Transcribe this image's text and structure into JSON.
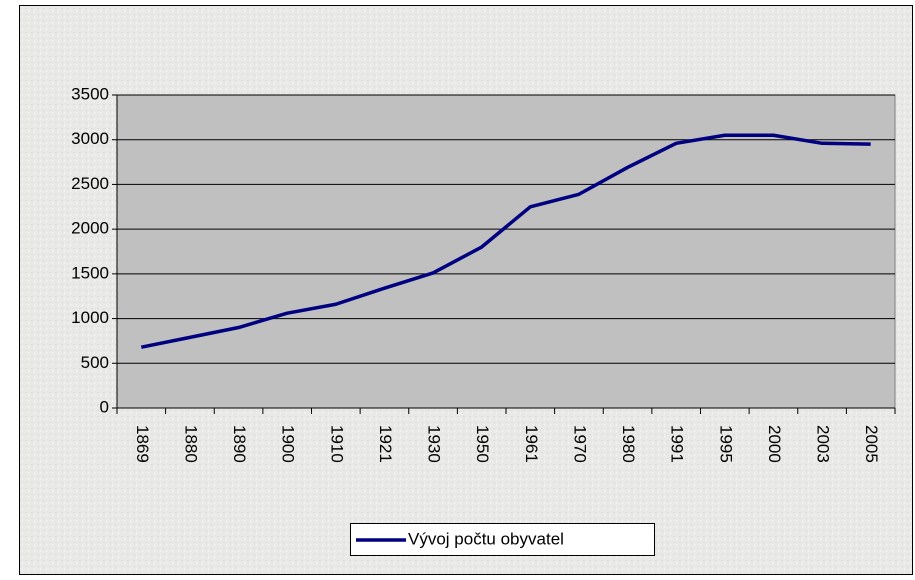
{
  "chart_data": {
    "type": "line",
    "categories": [
      "1869",
      "1880",
      "1890",
      "1900",
      "1910",
      "1921",
      "1930",
      "1950",
      "1961",
      "1970",
      "1980",
      "1991",
      "1995",
      "2000",
      "2003",
      "2005"
    ],
    "series": [
      {
        "name": "Vývoj počtu obyvatel",
        "color": "#000080",
        "values": [
          680,
          790,
          900,
          1060,
          1160,
          1340,
          1510,
          1800,
          2250,
          2390,
          2690,
          2960,
          3050,
          3050,
          2960,
          2950
        ]
      }
    ],
    "ylim": [
      0,
      3500
    ],
    "yticks": [
      0,
      500,
      1000,
      1500,
      2000,
      2500,
      3000,
      3500
    ],
    "grid": true,
    "legend": "bottom"
  }
}
